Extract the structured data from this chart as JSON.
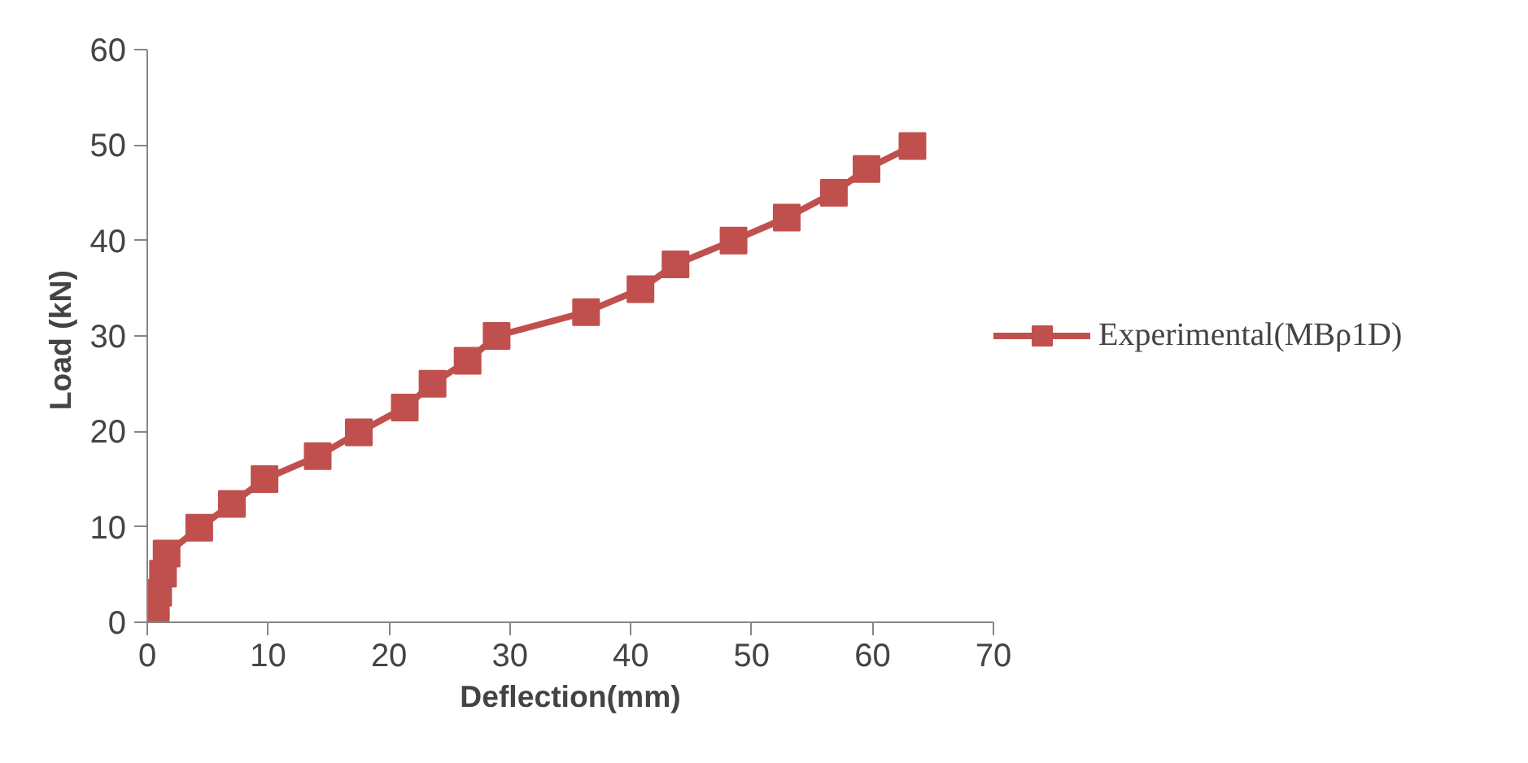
{
  "chart_data": {
    "type": "line",
    "xlabel": "Deflection(mm)",
    "ylabel": "Load  (kN)",
    "marker": "square",
    "legend": "right",
    "grid": false,
    "xlim": [
      0,
      70
    ],
    "xticks": [
      0,
      10,
      20,
      30,
      40,
      50,
      60,
      70
    ],
    "ylim": [
      0,
      60
    ],
    "yticks": [
      0,
      10,
      20,
      30,
      40,
      50,
      60
    ],
    "series": [
      {
        "name": "Experimental(MBρ1D)",
        "color": "#c0504d",
        "x": [
          0.7,
          0.7,
          0.9,
          1.3,
          1.6,
          4.3,
          7,
          9.7,
          14.1,
          17.5,
          21.3,
          23.6,
          26.5,
          28.9,
          36.3,
          40.8,
          43.7,
          48.5,
          52.9,
          56.8,
          59.5,
          63.3
        ],
        "values": [
          0,
          1.7,
          3.1,
          5.1,
          7.2,
          9.9,
          12.4,
          15,
          17.4,
          19.9,
          22.5,
          25,
          27.4,
          30,
          32.5,
          34.9,
          37.5,
          40,
          42.4,
          45,
          47.5,
          49.9
        ]
      }
    ]
  }
}
